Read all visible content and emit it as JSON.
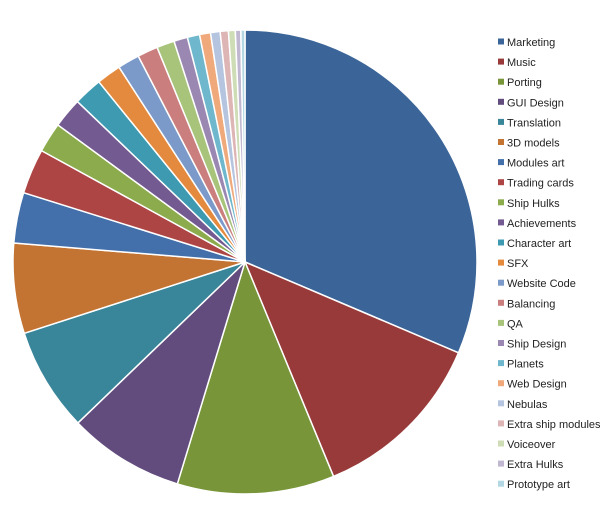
{
  "chart_data": {
    "type": "pie",
    "title": "",
    "start_angle_deg": 0,
    "direction": "clockwise",
    "legend_position": "right",
    "slices": [
      {
        "label": "Marketing",
        "value": 33.0,
        "color": "#3B6598"
      },
      {
        "label": "Music",
        "value": 13.0,
        "color": "#983A3A"
      },
      {
        "label": "Porting",
        "value": 11.5,
        "color": "#789539"
      },
      {
        "label": "GUI Design",
        "value": 8.5,
        "color": "#624C7D"
      },
      {
        "label": "Translation",
        "value": 7.6,
        "color": "#398599"
      },
      {
        "label": "3D models",
        "value": 6.6,
        "color": "#C37433"
      },
      {
        "label": "Modules art",
        "value": 3.7,
        "color": "#4370AB"
      },
      {
        "label": "Trading cards",
        "value": 3.3,
        "color": "#AE4545"
      },
      {
        "label": "Ship Hulks",
        "value": 2.2,
        "color": "#8CAB4C"
      },
      {
        "label": "Achievements",
        "value": 2.2,
        "color": "#735A91"
      },
      {
        "label": "Character art",
        "value": 2.1,
        "color": "#3D9AB1"
      },
      {
        "label": "SFX",
        "value": 1.8,
        "color": "#E48A3E"
      },
      {
        "label": "Website Code",
        "value": 1.6,
        "color": "#7B99C9"
      },
      {
        "label": "Balancing",
        "value": 1.5,
        "color": "#CB7E7E"
      },
      {
        "label": "QA",
        "value": 1.3,
        "color": "#A8C47B"
      },
      {
        "label": "Ship Design",
        "value": 1.0,
        "color": "#9A88B2"
      },
      {
        "label": "Planets",
        "value": 0.9,
        "color": "#6FB7CC"
      },
      {
        "label": "Web Design",
        "value": 0.8,
        "color": "#EFA97B"
      },
      {
        "label": "Nebulas",
        "value": 0.7,
        "color": "#B5C4DF"
      },
      {
        "label": "Extra ship modules",
        "value": 0.6,
        "color": "#DDB5B5"
      },
      {
        "label": "Voiceover",
        "value": 0.5,
        "color": "#CFDDB6"
      },
      {
        "label": "Extra Hulks",
        "value": 0.4,
        "color": "#C0B7D1"
      },
      {
        "label": "Prototype art",
        "value": 0.3,
        "color": "#B4D8E3"
      }
    ]
  }
}
